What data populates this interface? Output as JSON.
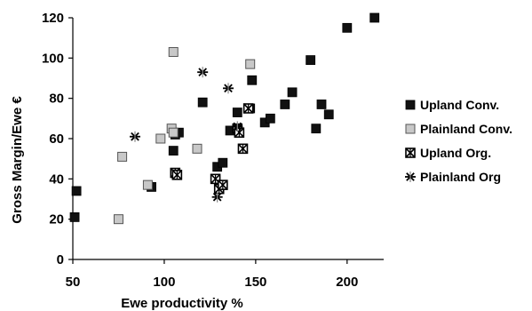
{
  "chart_data": {
    "type": "scatter",
    "title": "",
    "xlabel": "Ewe productivity %",
    "ylabel": "Gross Margin/Ewe €",
    "xlim": [
      50,
      220
    ],
    "ylim": [
      0,
      120
    ],
    "x_ticks": [
      "50",
      "100",
      "150",
      "200"
    ],
    "y_ticks": [
      "0",
      "20",
      "40",
      "60",
      "80",
      "100",
      "120"
    ],
    "grid": false,
    "legend_position": "right",
    "series": [
      {
        "name": "Upland Conv.",
        "marker": "square-filled",
        "color": "#111111",
        "points": [
          [
            52,
            34
          ],
          [
            51,
            21
          ],
          [
            93,
            36
          ],
          [
            105,
            54
          ],
          [
            106,
            62
          ],
          [
            108,
            63
          ],
          [
            121,
            78
          ],
          [
            129,
            46
          ],
          [
            132,
            48
          ],
          [
            136,
            64
          ],
          [
            140,
            73
          ],
          [
            147,
            75
          ],
          [
            148,
            89
          ],
          [
            155,
            68
          ],
          [
            158,
            70
          ],
          [
            166,
            77
          ],
          [
            170,
            83
          ],
          [
            180,
            99
          ],
          [
            183,
            65
          ],
          [
            186,
            77
          ],
          [
            190,
            72
          ],
          [
            200,
            115
          ],
          [
            215,
            120
          ]
        ]
      },
      {
        "name": "Plainland Conv.",
        "marker": "square-light",
        "color": "#c8c8c8",
        "points": [
          [
            75,
            20
          ],
          [
            77,
            51
          ],
          [
            91,
            37
          ],
          [
            98,
            60
          ],
          [
            104,
            65
          ],
          [
            105,
            63
          ],
          [
            105,
            103
          ],
          [
            118,
            55
          ],
          [
            147,
            97
          ]
        ]
      },
      {
        "name": "Upland Org.",
        "marker": "square-cross",
        "color": "#000000",
        "points": [
          [
            106,
            43
          ],
          [
            107,
            42
          ],
          [
            128,
            40
          ],
          [
            130,
            35
          ],
          [
            132,
            37
          ],
          [
            140,
            65
          ],
          [
            141,
            63
          ],
          [
            143,
            55
          ],
          [
            146,
            75
          ]
        ]
      },
      {
        "name": "Plainland Org",
        "marker": "asterisk",
        "color": "#000000",
        "points": [
          [
            84,
            61
          ],
          [
            121,
            93
          ],
          [
            129,
            31
          ],
          [
            135,
            85
          ],
          [
            140,
            66
          ]
        ]
      }
    ]
  }
}
